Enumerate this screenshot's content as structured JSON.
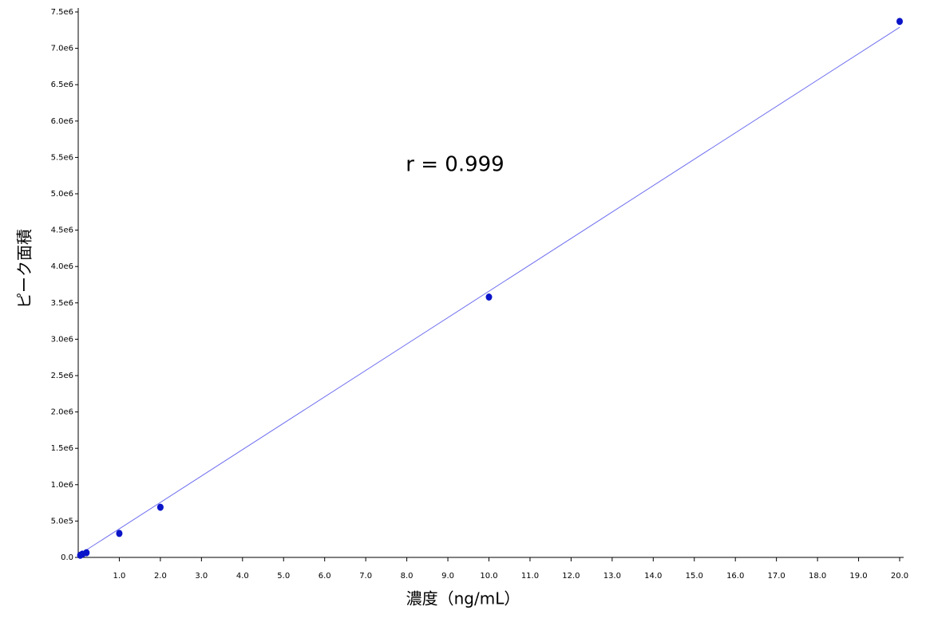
{
  "chart_data": {
    "type": "scatter",
    "x_label": "濃度（ng/mL）",
    "y_label": "ピーク面積",
    "annotation": "r = 0.999",
    "xlim": [
      0,
      20
    ],
    "ylim": [
      0,
      7500000
    ],
    "xticks": [
      {
        "value": 1,
        "label": "1.0"
      },
      {
        "value": 2,
        "label": "2.0"
      },
      {
        "value": 3,
        "label": "3.0"
      },
      {
        "value": 4,
        "label": "4.0"
      },
      {
        "value": 5,
        "label": "5.0"
      },
      {
        "value": 6,
        "label": "6.0"
      },
      {
        "value": 7,
        "label": "7.0"
      },
      {
        "value": 8,
        "label": "8.0"
      },
      {
        "value": 9,
        "label": "9.0"
      },
      {
        "value": 10,
        "label": "10.0"
      },
      {
        "value": 11,
        "label": "11.0"
      },
      {
        "value": 12,
        "label": "12.0"
      },
      {
        "value": 13,
        "label": "13.0"
      },
      {
        "value": 14,
        "label": "14.0"
      },
      {
        "value": 15,
        "label": "15.0"
      },
      {
        "value": 16,
        "label": "16.0"
      },
      {
        "value": 17,
        "label": "17.0"
      },
      {
        "value": 18,
        "label": "18.0"
      },
      {
        "value": 19,
        "label": "19.0"
      },
      {
        "value": 20,
        "label": "20.0"
      }
    ],
    "yticks": [
      {
        "value": 0,
        "label": "0.0"
      },
      {
        "value": 500000,
        "label": "5.0e5"
      },
      {
        "value": 1000000,
        "label": "1.0e6"
      },
      {
        "value": 1500000,
        "label": "1.5e6"
      },
      {
        "value": 2000000,
        "label": "2.0e6"
      },
      {
        "value": 2500000,
        "label": "2.5e6"
      },
      {
        "value": 3000000,
        "label": "3.0e6"
      },
      {
        "value": 3500000,
        "label": "3.5e6"
      },
      {
        "value": 4000000,
        "label": "4.0e6"
      },
      {
        "value": 4500000,
        "label": "4.5e6"
      },
      {
        "value": 5000000,
        "label": "5.0e6"
      },
      {
        "value": 5500000,
        "label": "5.5e6"
      },
      {
        "value": 6000000,
        "label": "6.0e6"
      },
      {
        "value": 6500000,
        "label": "6.5e6"
      },
      {
        "value": 7000000,
        "label": "7.0e6"
      },
      {
        "value": 7500000,
        "label": "7.5e6"
      }
    ],
    "series": [
      {
        "color": "#0a14c8",
        "x": [
          0.05,
          0.1,
          0.2,
          1,
          2,
          10,
          20
        ],
        "values": [
          30000,
          45000,
          65000,
          330000,
          690000,
          3580000,
          7370000
        ]
      }
    ],
    "fit_line": {
      "color": "#7070f0",
      "x": [
        0,
        20
      ],
      "values": [
        30000,
        7290000
      ]
    }
  }
}
